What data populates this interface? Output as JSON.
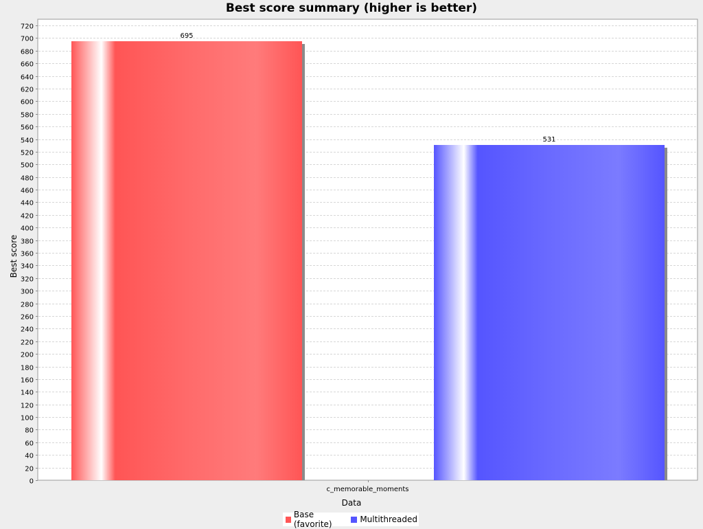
{
  "colors": {
    "series0": "#ff5555",
    "series1": "#5555ff",
    "background": "#eeeeee",
    "plot": "#ffffff",
    "grid": "#d8d8d8"
  },
  "chart_data": {
    "type": "bar",
    "title": "Best score summary (higher is better)",
    "xlabel": "Data",
    "ylabel": "Best score",
    "categories": [
      "c_memorable_moments"
    ],
    "series": [
      {
        "name": "Base (favorite)",
        "values": [
          695
        ]
      },
      {
        "name": "Multithreaded",
        "values": [
          531
        ]
      }
    ],
    "ylim": [
      0,
      720
    ],
    "ytick_step": 20,
    "grid": true,
    "legend": "bottom-center"
  }
}
